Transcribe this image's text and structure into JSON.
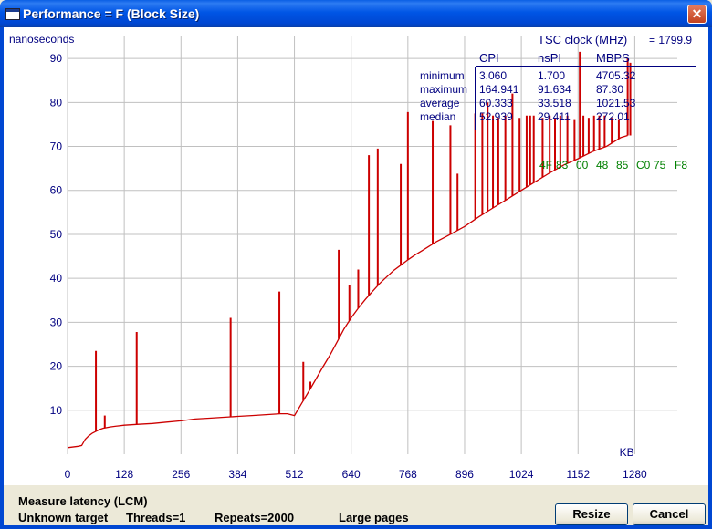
{
  "window": {
    "title": "Performance = F (Block Size)",
    "close_glyph": "✕"
  },
  "chart_data": {
    "type": "line",
    "ylabel": "nanoseconds",
    "xlabel": "KB",
    "xlim": [
      0,
      1376
    ],
    "ylim": [
      0,
      95
    ],
    "x_ticks": [
      "0",
      "128",
      "256",
      "384",
      "512",
      "640",
      "768",
      "896",
      "1024",
      "1152",
      "1280"
    ],
    "y_ticks": [
      "10",
      "20",
      "30",
      "40",
      "50",
      "60",
      "70",
      "80",
      "90"
    ],
    "grid": true,
    "line_color": "#cc0000",
    "x": [
      0,
      8,
      16,
      24,
      32,
      40,
      48,
      56,
      64,
      72,
      80,
      96,
      112,
      128,
      144,
      160,
      192,
      224,
      256,
      288,
      320,
      352,
      384,
      416,
      448,
      480,
      496,
      512,
      528,
      544,
      560,
      576,
      592,
      608,
      624,
      640,
      656,
      672,
      688,
      704,
      720,
      736,
      752,
      768,
      784,
      800,
      832,
      864,
      896,
      928,
      960,
      992,
      1024,
      1056,
      1088,
      1120,
      1152,
      1184,
      1216,
      1248,
      1264
    ],
    "y": [
      1.5,
      1.6,
      1.7,
      1.8,
      2.0,
      3.4,
      4.2,
      4.8,
      5.2,
      5.6,
      5.9,
      6.2,
      6.4,
      6.6,
      6.7,
      6.8,
      7.0,
      7.3,
      7.6,
      8.0,
      8.2,
      8.4,
      8.6,
      8.8,
      9.0,
      9.2,
      9.2,
      8.8,
      11.5,
      14.2,
      17.0,
      19.8,
      22.5,
      25.5,
      28.5,
      31.0,
      33.2,
      35.2,
      37.0,
      38.8,
      40.3,
      41.8,
      43.0,
      44.2,
      45.3,
      46.3,
      48.3,
      50.0,
      51.8,
      54.0,
      56.0,
      58.0,
      60.0,
      62.0,
      64.0,
      65.8,
      67.2,
      68.8,
      70.0,
      72.0,
      72.5
    ],
    "spikes": [
      {
        "x": 64,
        "y": 23.5
      },
      {
        "x": 84,
        "y": 8.8
      },
      {
        "x": 156,
        "y": 27.8
      },
      {
        "x": 368,
        "y": 31
      },
      {
        "x": 478,
        "y": 37
      },
      {
        "x": 532,
        "y": 21
      },
      {
        "x": 548,
        "y": 16.5
      },
      {
        "x": 612,
        "y": 46.5
      },
      {
        "x": 636,
        "y": 38.5
      },
      {
        "x": 656,
        "y": 42
      },
      {
        "x": 680,
        "y": 68
      },
      {
        "x": 700,
        "y": 69.5
      },
      {
        "x": 752,
        "y": 66
      },
      {
        "x": 768,
        "y": 77.8
      },
      {
        "x": 824,
        "y": 75.8
      },
      {
        "x": 864,
        "y": 74.8
      },
      {
        "x": 880,
        "y": 63.8
      },
      {
        "x": 920,
        "y": 77.5
      },
      {
        "x": 936,
        "y": 77.5
      },
      {
        "x": 948,
        "y": 80
      },
      {
        "x": 960,
        "y": 77
      },
      {
        "x": 972,
        "y": 76.5
      },
      {
        "x": 988,
        "y": 77
      },
      {
        "x": 1004,
        "y": 82
      },
      {
        "x": 1020,
        "y": 76.5
      },
      {
        "x": 1036,
        "y": 77
      },
      {
        "x": 1044,
        "y": 77
      },
      {
        "x": 1052,
        "y": 77
      },
      {
        "x": 1072,
        "y": 76.5
      },
      {
        "x": 1088,
        "y": 77
      },
      {
        "x": 1100,
        "y": 76.5
      },
      {
        "x": 1112,
        "y": 77
      },
      {
        "x": 1128,
        "y": 77
      },
      {
        "x": 1144,
        "y": 76
      },
      {
        "x": 1156,
        "y": 91.5
      },
      {
        "x": 1164,
        "y": 77
      },
      {
        "x": 1176,
        "y": 76.5
      },
      {
        "x": 1188,
        "y": 77
      },
      {
        "x": 1200,
        "y": 77
      },
      {
        "x": 1212,
        "y": 77
      },
      {
        "x": 1228,
        "y": 76.5
      },
      {
        "x": 1244,
        "y": 76
      },
      {
        "x": 1264,
        "y": 90
      },
      {
        "x": 1270,
        "y": 89
      }
    ],
    "tsc": {
      "label": "TSC clock (MHz)",
      "value": "= 1799.9"
    },
    "stats": {
      "columns": [
        "CPI",
        "nsPI",
        "MBPS"
      ],
      "rows": [
        {
          "label": "minimum",
          "values": [
            "3.060",
            "1.700",
            "4705.32"
          ]
        },
        {
          "label": "maximum",
          "values": [
            "164.941",
            "91.634",
            "87.30"
          ]
        },
        {
          "label": "average",
          "values": [
            "60.333",
            "33.518",
            "1021.53"
          ]
        },
        {
          "label": "median",
          "values": [
            "52.939",
            "29.411",
            "272.01"
          ]
        }
      ]
    },
    "address_bytes": [
      "4F",
      "83",
      "00",
      "48",
      "85",
      "C0",
      "75",
      "F8"
    ],
    "colors": {
      "axis_text": "#000080",
      "grid": "#c0c0c0",
      "line": "#cc0000",
      "bytes": "#008000",
      "stats_line": "#000080"
    }
  },
  "status": {
    "line1": "Measure latency (LCM)",
    "target": "Unknown target",
    "threads": "Threads=1",
    "repeats": "Repeats=2000",
    "pages": "Large pages"
  },
  "buttons": {
    "resize": "Resize",
    "cancel": "Cancel"
  }
}
